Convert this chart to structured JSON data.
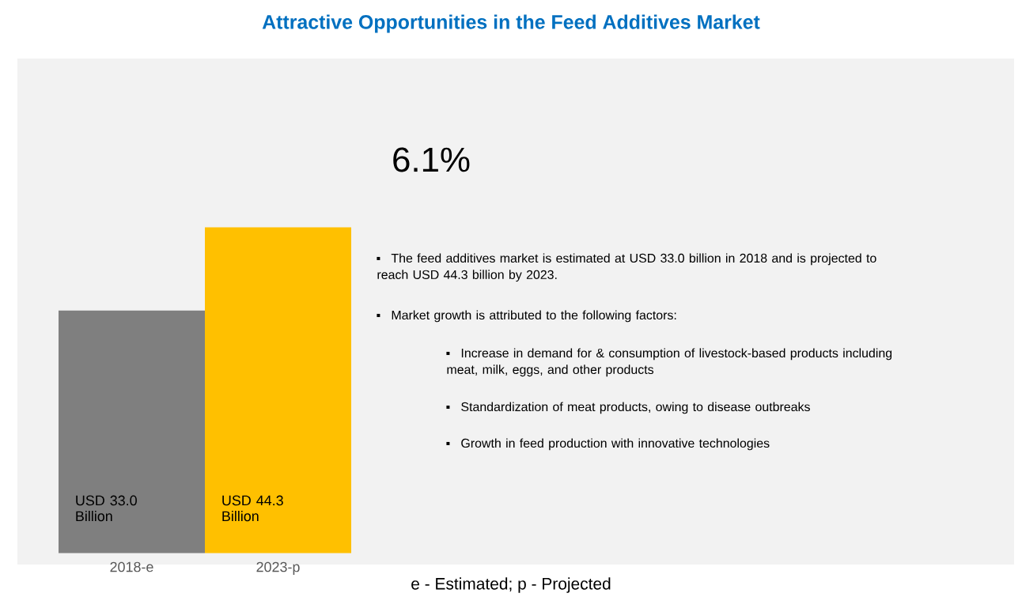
{
  "chart_data": {
    "type": "bar",
    "title": "Attractive Opportunities in the Feed Additives Market",
    "categories": [
      "2018-e",
      "2023-p"
    ],
    "values": [
      33.0,
      44.3
    ],
    "colors": [
      "#7f7f7f",
      "#ffc000"
    ],
    "value_labels": [
      "USD 33.0 Billion",
      "USD 44.3 Billion"
    ],
    "annotations": [
      "6.1%",
      "The feed additives market is estimated at USD 33.0 billion in 2018 and is projected to reach USD 44.3 billion by 2023.",
      "Market growth is attributed to the following factors:",
      "Increase in demand for & consumption of livestock-based products including meat, milk, eggs, and other products",
      "Standardization of meat products, owing to disease outbreaks",
      "Growth in feed production with innovative technologies",
      "e - Estimated; p - Projected"
    ]
  }
}
